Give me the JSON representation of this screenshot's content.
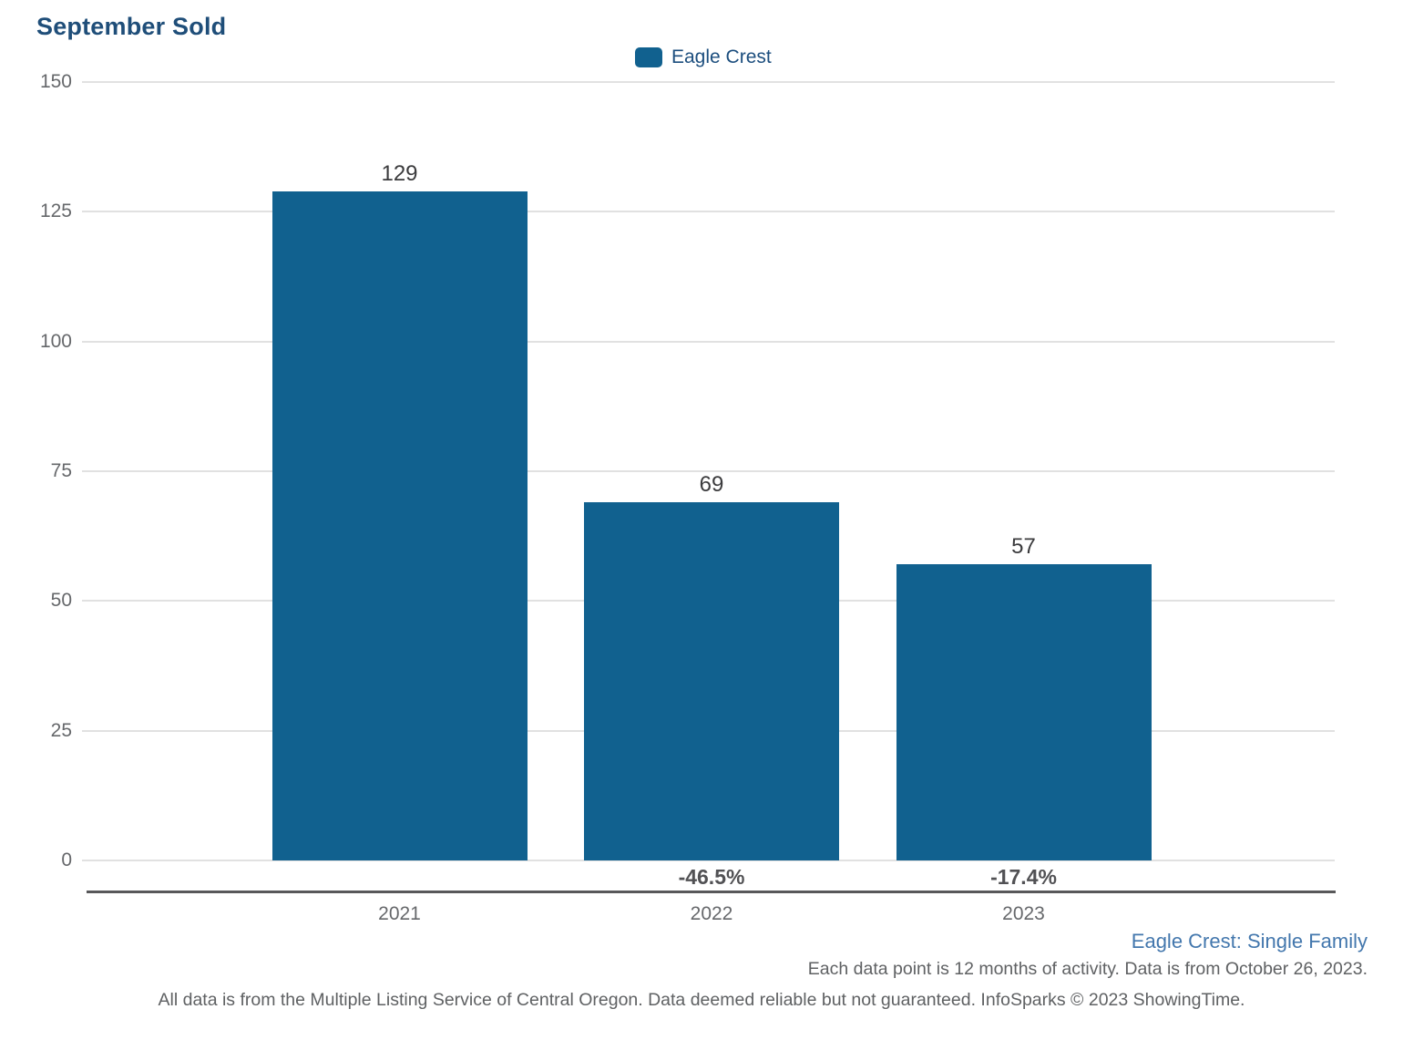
{
  "title": "September Sold",
  "legend": {
    "label": "Eagle Crest",
    "swatch_color": "#11618f"
  },
  "chart_data": {
    "type": "bar",
    "title": "September Sold",
    "categories": [
      "2021",
      "2022",
      "2023"
    ],
    "series": [
      {
        "name": "Eagle Crest",
        "values": [
          129,
          69,
          57
        ]
      }
    ],
    "value_labels": [
      "129",
      "69",
      "57"
    ],
    "pct_change_labels": [
      null,
      "-46.5%",
      "-17.4%"
    ],
    "ylim": [
      0,
      150
    ],
    "yticks": [
      0,
      25,
      50,
      75,
      100,
      125,
      150
    ],
    "xlabel": "",
    "ylabel": "",
    "bar_color": "#11618f",
    "grid": "horizontal-only",
    "legend_position": "top-center"
  },
  "footer": {
    "segment_label": "Eagle Crest: Single Family",
    "data_note": "Each data point is 12 months of activity. Data is from October 26, 2023.",
    "disclaimer": "All data is from the Multiple Listing Service of Central Oregon. Data deemed reliable but not guaranteed. InfoSparks © 2023 ShowingTime."
  },
  "colors": {
    "title_text": "#1f4e79",
    "bar": "#11618f",
    "axis_tick_text": "#66686b",
    "value_label_text": "#3b3b3d",
    "pct_label_text": "#515154",
    "gridline": "#e1e1e1",
    "axis_line": "#58585a",
    "segment_label_text": "#4377ad",
    "footer_text": "#5f6163"
  }
}
